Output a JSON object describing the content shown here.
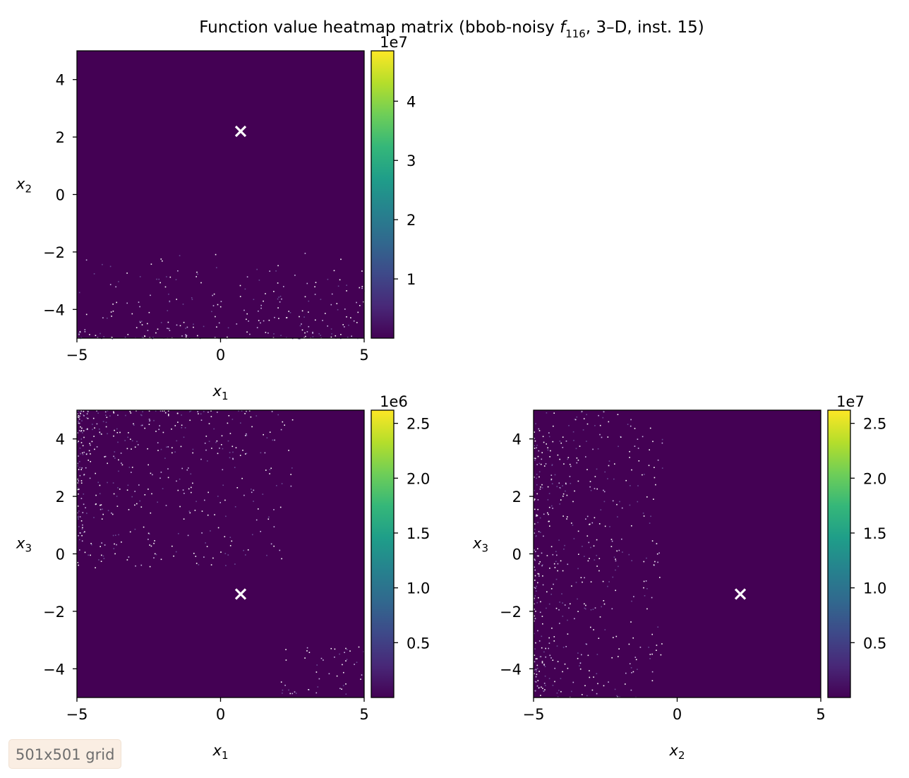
{
  "figure": {
    "title_prefix": "Function value heatmap matrix (bbob-noisy ",
    "title_f": "f",
    "title_sub": "116",
    "title_suffix": ", 3–D, inst. 15)",
    "badge": "501x501 grid"
  },
  "colors": {
    "viridis": [
      "#440154",
      "#482878",
      "#3e4989",
      "#31688e",
      "#26828e",
      "#1f9e89",
      "#35b779",
      "#6ece58",
      "#b5de2b",
      "#fde725"
    ],
    "background": "#440154",
    "marker": "#ffffff"
  },
  "chart_data": [
    {
      "type": "heatmap",
      "name": "x1-x2",
      "x_var": "x",
      "x_sub": "1",
      "y_var": "x",
      "y_sub": "2",
      "xlim": [
        -5,
        5
      ],
      "ylim": [
        -5,
        5
      ],
      "xticks": [
        -5,
        0,
        5
      ],
      "xtick_labels": [
        "−5",
        "0",
        "5"
      ],
      "yticks": [
        -4,
        -2,
        0,
        2,
        4
      ],
      "ytick_labels": [
        "−4",
        "−2",
        "0",
        "2",
        "4"
      ],
      "grid_resolution": [
        501,
        501
      ],
      "optimum_marker": {
        "x": 0.7,
        "y": 2.2
      },
      "noise_region": "bottom",
      "colorbar": {
        "range": [
          0,
          48500000
        ],
        "ticks": [
          10000000,
          20000000,
          30000000,
          40000000
        ],
        "tick_labels": [
          "1",
          "2",
          "3",
          "4"
        ],
        "offset_label": "1e7",
        "colormap": "viridis"
      }
    },
    {
      "type": "heatmap",
      "name": "x1-x3",
      "x_var": "x",
      "x_sub": "1",
      "y_var": "x",
      "y_sub": "3",
      "xlim": [
        -5,
        5
      ],
      "ylim": [
        -5,
        5
      ],
      "xticks": [
        -5,
        0,
        5
      ],
      "xtick_labels": [
        "−5",
        "0",
        "5"
      ],
      "yticks": [
        -4,
        -2,
        0,
        2,
        4
      ],
      "ytick_labels": [
        "−4",
        "−2",
        "0",
        "2",
        "4"
      ],
      "grid_resolution": [
        501,
        501
      ],
      "optimum_marker": {
        "x": 0.7,
        "y": -1.4
      },
      "noise_region": "top-left",
      "colorbar": {
        "range": [
          0,
          2620000
        ],
        "ticks": [
          500000,
          1000000,
          1500000,
          2000000,
          2500000
        ],
        "tick_labels": [
          "0.5",
          "1.0",
          "1.5",
          "2.0",
          "2.5"
        ],
        "offset_label": "1e6",
        "colormap": "viridis"
      }
    },
    {
      "type": "heatmap",
      "name": "x2-x3",
      "x_var": "x",
      "x_sub": "2",
      "y_var": "x",
      "y_sub": "3",
      "xlim": [
        -5,
        5
      ],
      "ylim": [
        -5,
        5
      ],
      "xticks": [
        -5,
        0,
        5
      ],
      "xtick_labels": [
        "−5",
        "0",
        "5"
      ],
      "yticks": [
        -4,
        -2,
        0,
        2,
        4
      ],
      "ytick_labels": [
        "−4",
        "−2",
        "0",
        "2",
        "4"
      ],
      "grid_resolution": [
        501,
        501
      ],
      "optimum_marker": {
        "x": 2.2,
        "y": -1.4
      },
      "noise_region": "left",
      "colorbar": {
        "range": [
          0,
          26200000
        ],
        "ticks": [
          5000000,
          10000000,
          15000000,
          20000000,
          25000000
        ],
        "tick_labels": [
          "0.5",
          "1.0",
          "1.5",
          "2.0",
          "2.5"
        ],
        "offset_label": "1e7",
        "colormap": "viridis"
      }
    }
  ]
}
